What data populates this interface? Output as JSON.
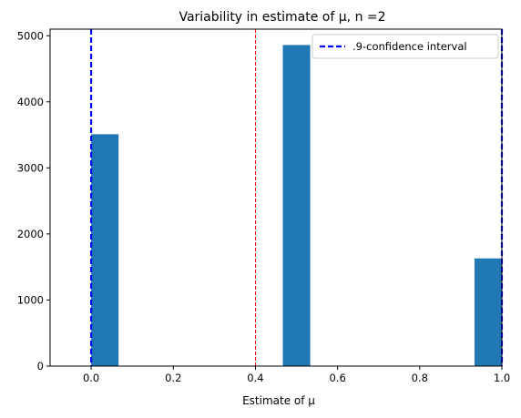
{
  "chart_data": {
    "type": "bar",
    "title": "Variability in estimate of μ, n =2",
    "xlabel": "Estimate of μ",
    "ylabel": "",
    "xlim": [
      -0.1,
      1.0
    ],
    "ylim": [
      0,
      5100
    ],
    "xticks": [
      0.0,
      0.2,
      0.4,
      0.6,
      0.8,
      1.0
    ],
    "xtick_labels": [
      "0.0",
      "0.2",
      "0.4",
      "0.6",
      "0.8",
      "1.0"
    ],
    "yticks": [
      0,
      1000,
      2000,
      3000,
      4000,
      5000
    ],
    "ytick_labels": [
      "0",
      "1000",
      "2000",
      "3000",
      "4000",
      "5000"
    ],
    "bars": [
      {
        "x_start": 0.0,
        "x_end": 0.0667,
        "value": 3510
      },
      {
        "x_start": 0.4667,
        "x_end": 0.5333,
        "value": 4860
      },
      {
        "x_start": 0.9333,
        "x_end": 1.0,
        "value": 1630
      }
    ],
    "bar_color": "#1f77b4",
    "vlines": [
      {
        "x": 0.0,
        "color": "#0000ff",
        "style": "dashed",
        "legend": true
      },
      {
        "x": 1.0,
        "color": "#0000ff",
        "style": "dashed",
        "legend": false
      },
      {
        "x": 0.4,
        "color": "#ff0000",
        "style": "dashed",
        "legend": false
      }
    ],
    "legend": {
      "position": "top-right",
      "entries": [
        {
          "label": ".9-confidence interval",
          "color": "#0000ff",
          "style": "dashed"
        }
      ]
    },
    "grid": false
  }
}
